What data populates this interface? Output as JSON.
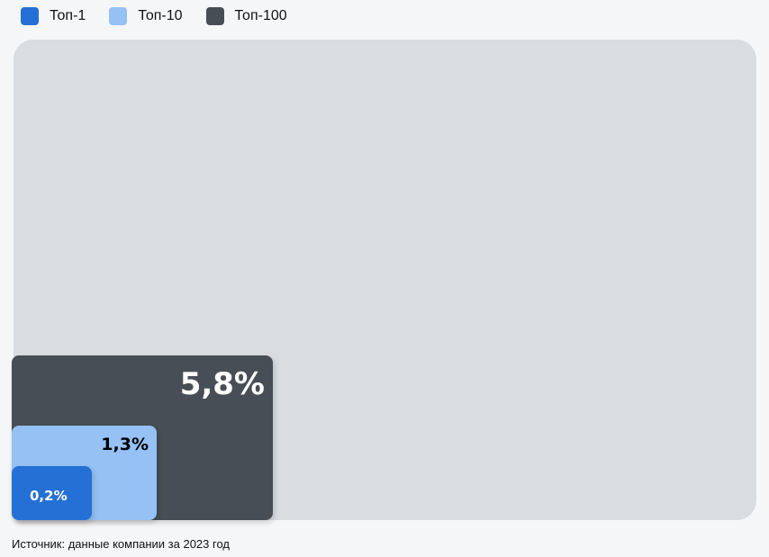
{
  "chart_data": {
    "type": "nested-area",
    "categories": [
      "Топ-1",
      "Топ-10",
      "Топ-100"
    ],
    "values": [
      0.2,
      1.3,
      5.8
    ],
    "data_labels": [
      "0,2%",
      "1,3%",
      "5,8%"
    ],
    "unit": "%",
    "colors": [
      "#2570d4",
      "#95c1f5",
      "#474e55"
    ],
    "background_color": "#d9dde0",
    "legend_position": "top-left"
  },
  "source": "Источник: данные компании за 2023 год"
}
